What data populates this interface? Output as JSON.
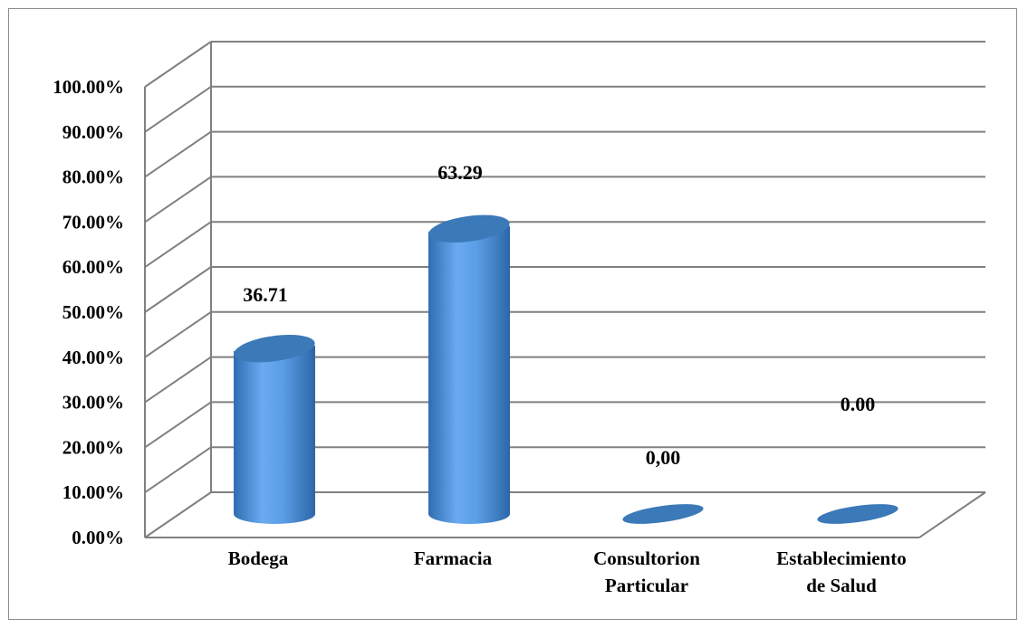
{
  "chart_data": {
    "type": "bar",
    "style": "3d-cylinder",
    "categories": [
      [
        "Bodega"
      ],
      [
        "Farmacia"
      ],
      [
        "Consultorion",
        "Particular"
      ],
      [
        "Establecimiento",
        "de Salud"
      ]
    ],
    "values": [
      36.71,
      63.29,
      0.0,
      0.0
    ],
    "data_labels": [
      "36.71",
      "63.29",
      "0,00",
      "0.00"
    ],
    "y_ticks": [
      "0.00%",
      "10.00%",
      "20.00%",
      "30.00%",
      "40.00%",
      "50.00%",
      "60.00%",
      "70.00%",
      "80.00%",
      "90.00%",
      "100.00%"
    ],
    "ylim": [
      0,
      100
    ],
    "grid": true,
    "legend": "none",
    "bar_color": "#4a8fd6"
  }
}
